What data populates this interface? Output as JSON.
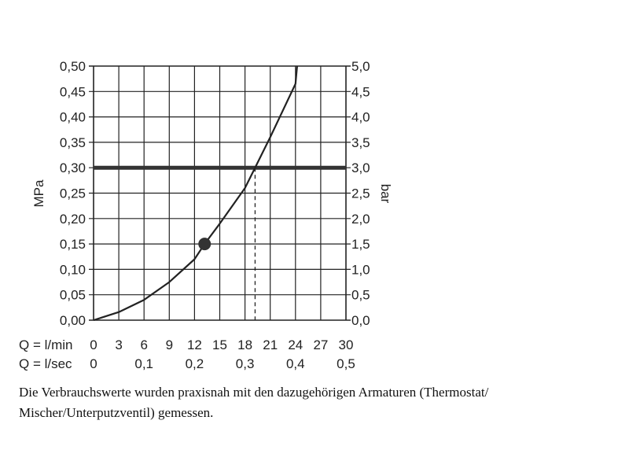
{
  "chart_data": {
    "type": "line",
    "y_left": {
      "label": "MPa",
      "range": [
        0,
        0.5
      ],
      "tick_labels": [
        "0,00",
        "0,05",
        "0,10",
        "0,15",
        "0,20",
        "0,25",
        "0,30",
        "0,35",
        "0,40",
        "0,45",
        "0,50"
      ]
    },
    "y_right": {
      "label": "bar",
      "range": [
        0,
        5
      ],
      "tick_labels": [
        "0,0",
        "0,5",
        "1,0",
        "1,5",
        "2,0",
        "2,5",
        "3,0",
        "3,5",
        "4,0",
        "4,5",
        "5,0"
      ]
    },
    "x_lmin": {
      "label": "Q = l/min",
      "range": [
        0,
        30
      ],
      "tick_labels": [
        "0",
        "3",
        "6",
        "9",
        "12",
        "15",
        "18",
        "21",
        "24",
        "27",
        "30"
      ]
    },
    "x_lsec": {
      "label": "Q = l/sec",
      "ticks": [
        0,
        0.1,
        0.2,
        0.3,
        0.4,
        0.5
      ],
      "tick_labels": [
        "0",
        "0,1",
        "0,2",
        "0,3",
        "0,4",
        "0,5"
      ]
    },
    "grid": true,
    "series": [
      {
        "type": "curve",
        "x_lmin": [
          0,
          3,
          6,
          9,
          12,
          13.2,
          15,
          18,
          19.2,
          21,
          24,
          24.2
        ],
        "y_mpa": [
          0,
          0.016,
          0.04,
          0.075,
          0.12,
          0.15,
          0.19,
          0.26,
          0.3,
          0.36,
          0.465,
          0.5
        ]
      }
    ],
    "reference_line": {
      "y_mpa": 0.3
    },
    "marker_point": {
      "x_lmin": 13.2,
      "y_mpa": 0.15
    },
    "dashed_drop_line": {
      "x_lmin": 19.2,
      "y_mpa": 0.3
    }
  },
  "footnote": {
    "line1": "Die Verbrauchswerte wurden praxisnah mit den dazugehörigen Armaturen (Thermostat/",
    "line2": "Mischer/Unterputzventil) gemessen."
  },
  "colors": {
    "grid": "#222222",
    "curve": "#222222",
    "reference_line": "#333333",
    "marker": "#333333"
  }
}
